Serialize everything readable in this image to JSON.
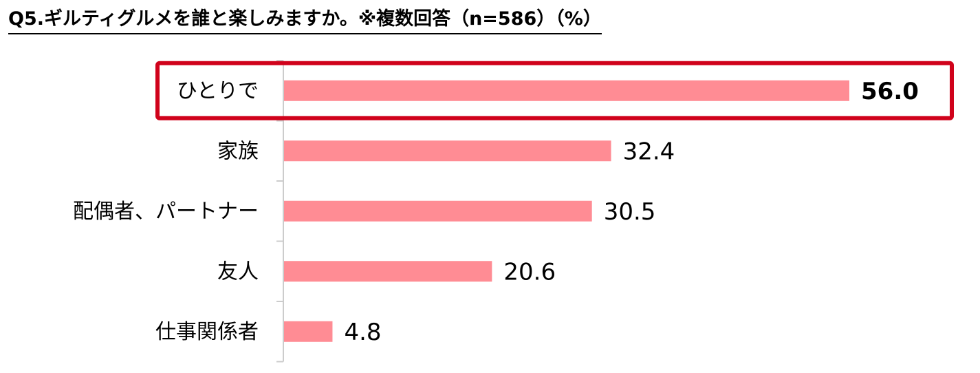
{
  "title": "Q5.ギルティグルメを誰と楽しみますか。※複数回答（n=586）（%）",
  "colors": {
    "bar": "#ff8c94",
    "highlight": "#d0021b",
    "axis": "#cccccc"
  },
  "chart_data": {
    "type": "bar",
    "orientation": "horizontal",
    "title": "Q5.ギルティグルメを誰と楽しみますか。※複数回答（n=586）（%）",
    "xlabel": "",
    "ylabel": "",
    "xlim": [
      0,
      60
    ],
    "grid": false,
    "legend": "none",
    "categories": [
      "ひとりで",
      "家族",
      "配偶者、パートナー",
      "友人",
      "仕事関係者"
    ],
    "values": [
      56.0,
      32.4,
      30.5,
      20.6,
      4.8
    ],
    "value_labels": [
      "56.0",
      "32.4",
      "30.5",
      "20.6",
      "4.8"
    ],
    "highlighted_category": "ひとりで"
  }
}
